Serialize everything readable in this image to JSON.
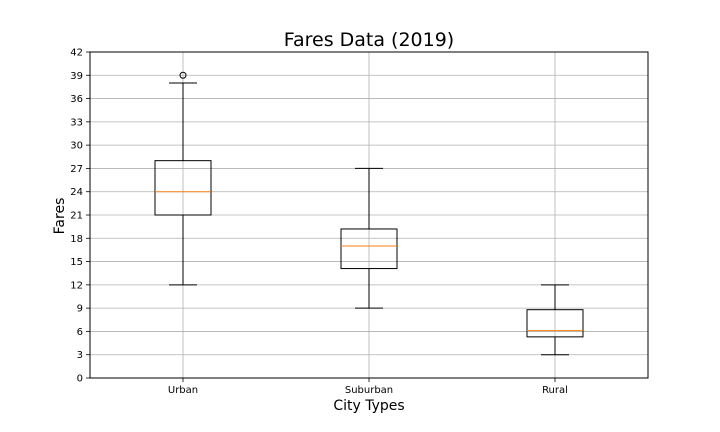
{
  "chart_data": {
    "type": "boxplot",
    "title": "Fares Data (2019)",
    "xlabel": "City Types",
    "ylabel": "Fares",
    "ylim": [
      0,
      42
    ],
    "yticks": [
      0,
      3,
      6,
      9,
      12,
      15,
      18,
      21,
      24,
      27,
      30,
      33,
      36,
      39,
      42
    ],
    "grid": true,
    "categories": [
      "Urban",
      "Suburban",
      "Rural"
    ],
    "boxes": [
      {
        "category": "Urban",
        "whisker_low": 12,
        "q1": 21,
        "median": 24,
        "q3": 28,
        "whisker_high": 38,
        "fliers": [
          39
        ]
      },
      {
        "category": "Suburban",
        "whisker_low": 9,
        "q1": 14.1,
        "median": 17,
        "q3": 19.2,
        "whisker_high": 27,
        "fliers": []
      },
      {
        "category": "Rural",
        "whisker_low": 3,
        "q1": 5.3,
        "median": 6.1,
        "q3": 8.8,
        "whisker_high": 12,
        "fliers": []
      }
    ],
    "colors": {
      "box": "#000000",
      "median": "#ff7f0e",
      "grid": "#b0b0b0"
    }
  }
}
